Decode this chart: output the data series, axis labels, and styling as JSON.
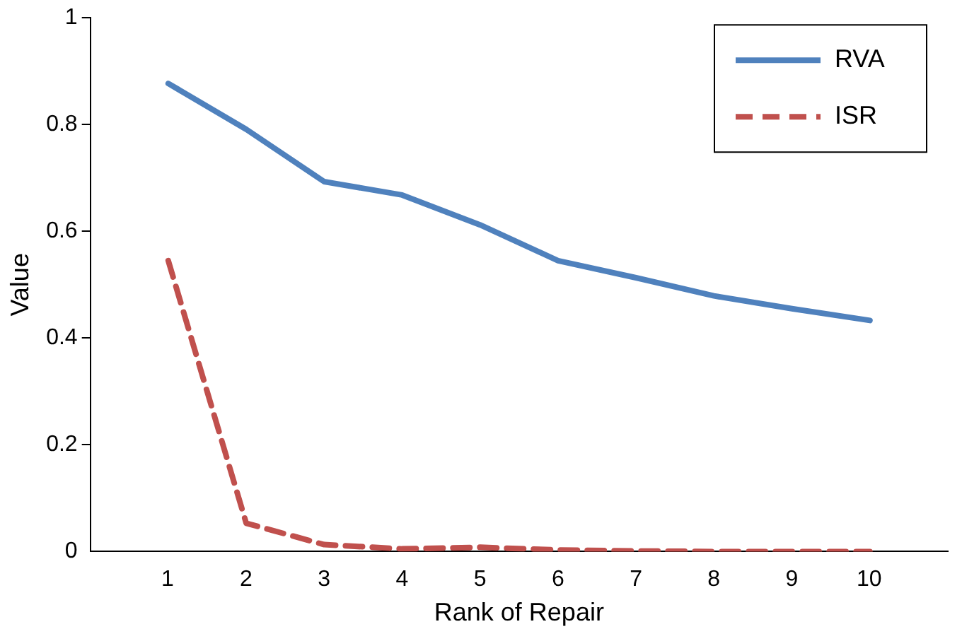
{
  "chart_data": {
    "type": "line",
    "xlabel": "Rank of Repair",
    "ylabel": "Value",
    "x": [
      1,
      2,
      3,
      4,
      5,
      6,
      7,
      8,
      9,
      10
    ],
    "xlim": [
      0,
      11
    ],
    "xticks": [
      1,
      2,
      3,
      4,
      5,
      6,
      7,
      8,
      9,
      10
    ],
    "ylim": [
      0,
      1
    ],
    "yticks": [
      0,
      0.2,
      0.4,
      0.6,
      0.8,
      1
    ],
    "grid": false,
    "legend": "top right",
    "marker": "none",
    "series": [
      {
        "name": "RVA",
        "color": "#4f81bd",
        "line_style": "solid",
        "values": [
          0.877,
          0.791,
          0.693,
          0.668,
          0.612,
          0.545,
          0.513,
          0.479,
          0.455,
          0.433
        ]
      },
      {
        "name": "ISR",
        "color": "#c0504d",
        "line_style": "dashed",
        "values": [
          0.545,
          0.053,
          0.013,
          0.005,
          0.008,
          0.003,
          0.001,
          0,
          0,
          0
        ]
      }
    ]
  }
}
